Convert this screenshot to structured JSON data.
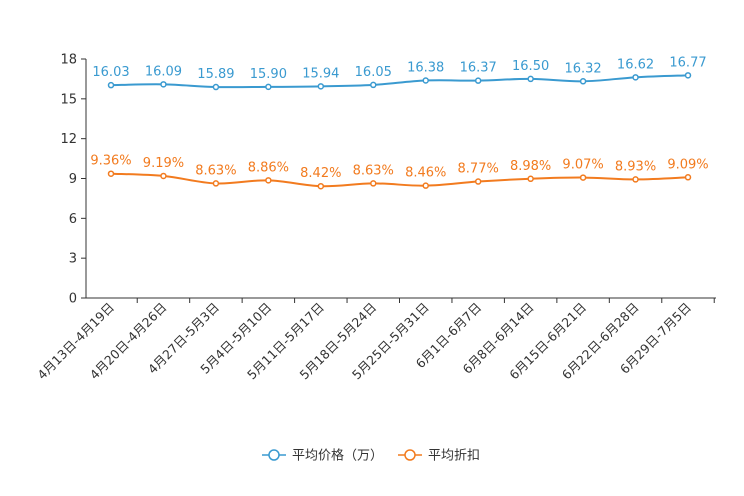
{
  "colors": {
    "series1": "#3a9ad0",
    "series2": "#f27b1f",
    "axis": "#333333",
    "tick_text": "#333333",
    "legend_text": "#333333"
  },
  "chart_data": {
    "type": "line",
    "title": "",
    "xlabel": "",
    "ylabel": "",
    "ylim": [
      0,
      18
    ],
    "yticks": [
      0,
      3,
      6,
      9,
      12,
      15,
      18
    ],
    "grid": false,
    "legend_position": "bottom-center",
    "categories": [
      "4月13日-4月19日",
      "4月20日-4月26日",
      "4月27日-5月3日",
      "5月4日-5月10日",
      "5月11日-5月17日",
      "5月18日-5月24日",
      "5月25日-5月31日",
      "6月1日-6月7日",
      "6月8日-6月14日",
      "6月15日-6月21日",
      "6月22日-6月28日",
      "6月29日-7月5日"
    ],
    "series": [
      {
        "name": "平均价格（万）",
        "values": [
          16.03,
          16.09,
          15.89,
          15.9,
          15.94,
          16.05,
          16.38,
          16.37,
          16.5,
          16.32,
          16.62,
          16.77
        ],
        "labels": [
          "16.03",
          "16.09",
          "15.89",
          "15.90",
          "15.94",
          "16.05",
          "16.38",
          "16.37",
          "16.50",
          "16.32",
          "16.62",
          "16.77"
        ]
      },
      {
        "name": "平均折扣",
        "values": [
          9.36,
          9.19,
          8.63,
          8.86,
          8.42,
          8.63,
          8.46,
          8.77,
          8.98,
          9.07,
          8.93,
          9.09
        ],
        "labels": [
          "9.36%",
          "9.19%",
          "8.63%",
          "8.86%",
          "8.42%",
          "8.63%",
          "8.46%",
          "8.77%",
          "8.98%",
          "9.07%",
          "8.93%",
          "9.09%"
        ]
      }
    ]
  }
}
